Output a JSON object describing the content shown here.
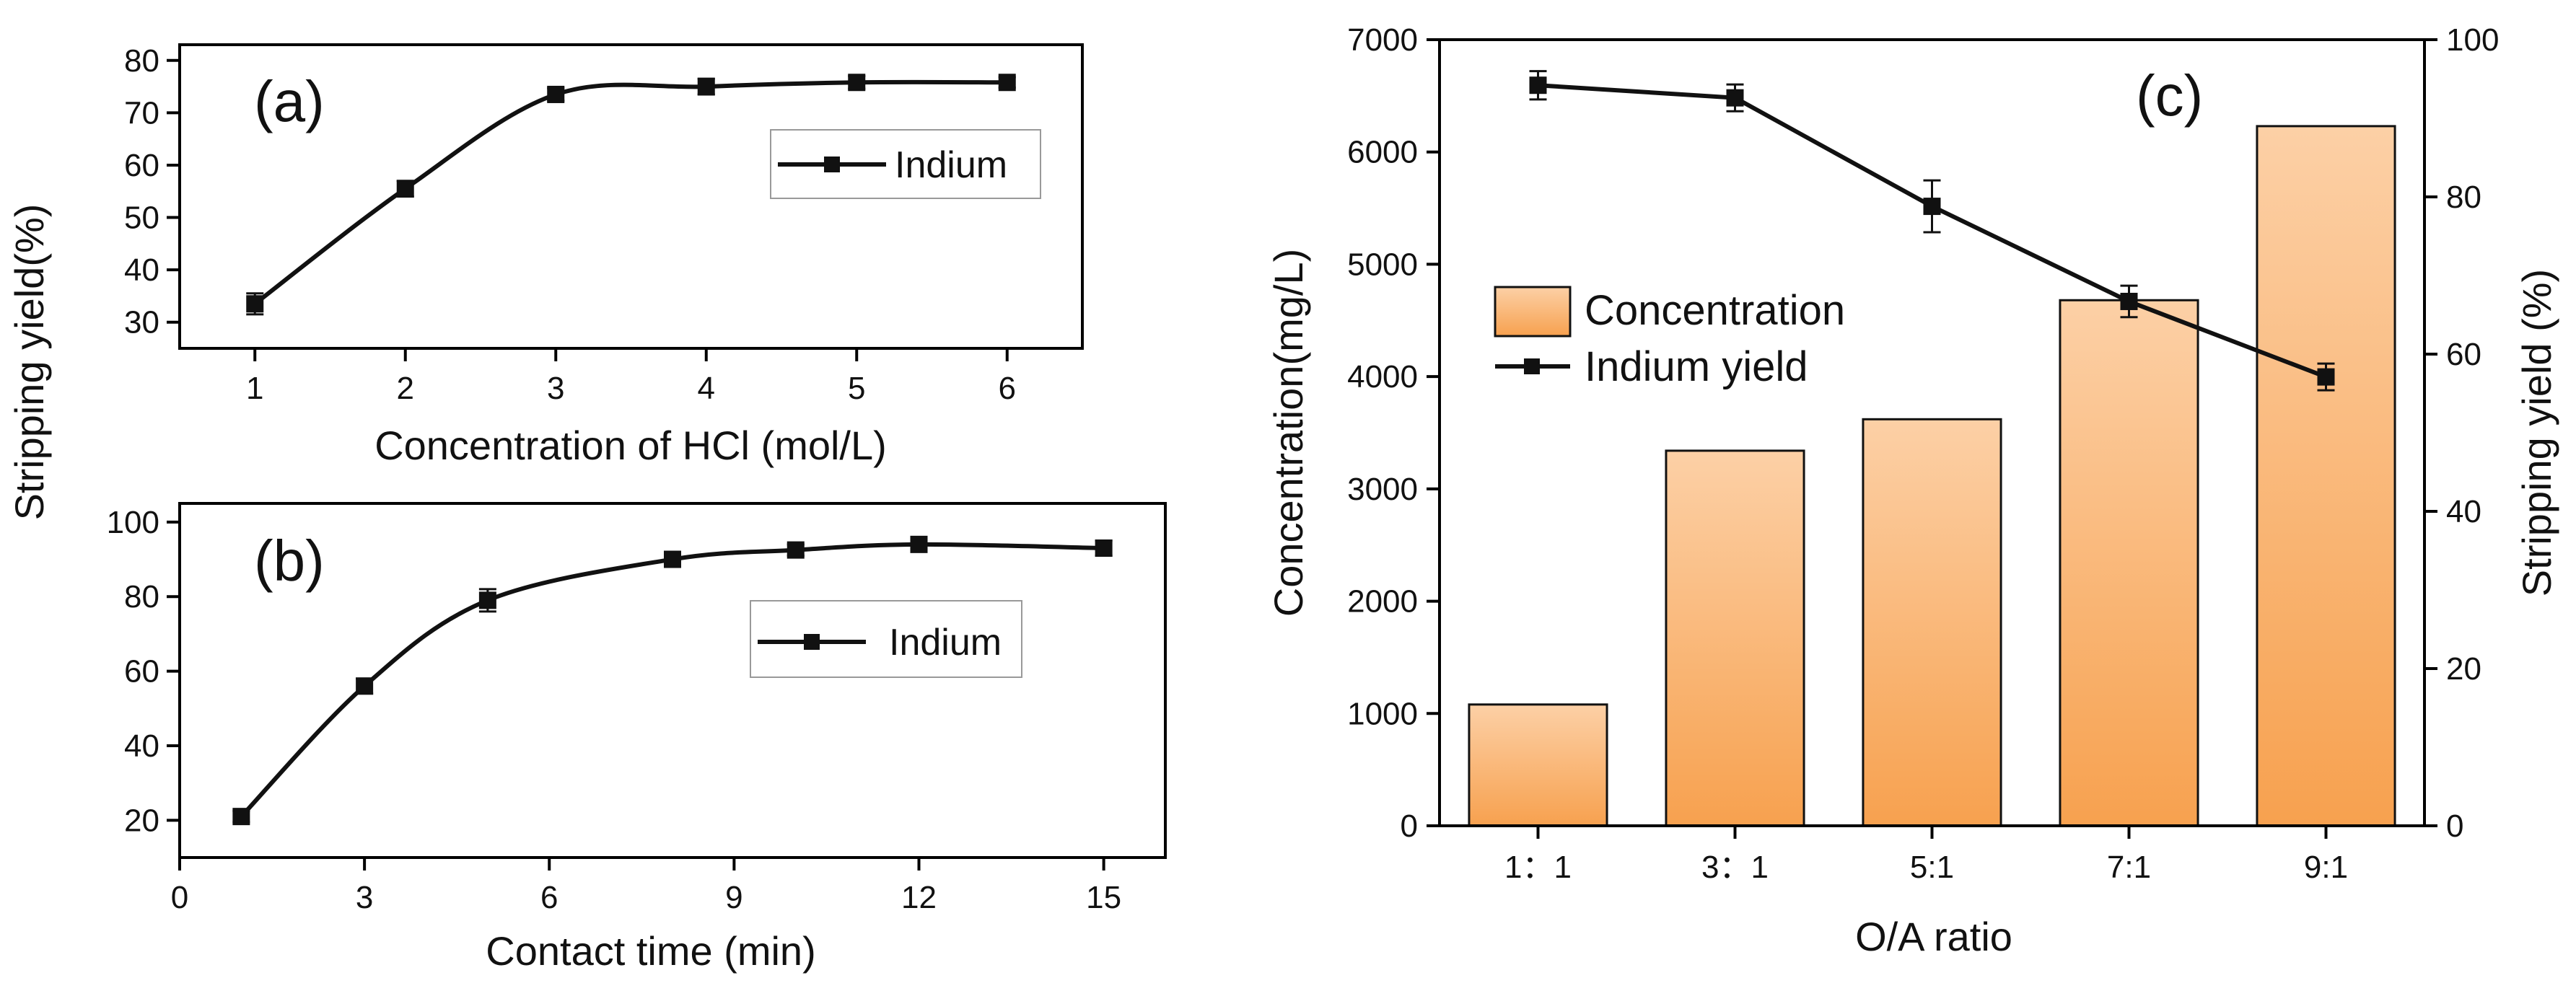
{
  "shared": {
    "ylabel_ab": "Stripping yield(%)"
  },
  "chart_data": [
    {
      "id": "a",
      "type": "line",
      "panel_label": "(a)",
      "xlabel": "Concentration of HCl (mol/L)",
      "ylabel": "Stripping yield(%)",
      "xlim": [
        0.5,
        6.5
      ],
      "ylim": [
        25,
        83
      ],
      "xticks": [
        1,
        2,
        3,
        4,
        5,
        6
      ],
      "yticks": [
        30,
        40,
        50,
        60,
        70,
        80
      ],
      "series": [
        {
          "name": "Indium",
          "x": [
            1,
            2,
            3,
            4,
            5,
            6
          ],
          "y": [
            33.5,
            55.5,
            73.5,
            75.0,
            75.8,
            75.8
          ],
          "err": [
            2.0,
            1.5,
            1.2,
            1.5,
            1.2,
            1.0
          ]
        }
      ],
      "legend": {
        "position": "right",
        "labels": [
          "Indium"
        ]
      }
    },
    {
      "id": "b",
      "type": "line",
      "panel_label": "(b)",
      "xlabel": "Contact time (min)",
      "ylabel": "Stripping yield(%)",
      "xlim": [
        0,
        16
      ],
      "ylim": [
        10,
        105
      ],
      "xticks": [
        0,
        3,
        6,
        9,
        12,
        15
      ],
      "yticks": [
        20,
        40,
        60,
        80,
        100
      ],
      "series": [
        {
          "name": "Indium",
          "x": [
            1,
            3,
            5,
            8,
            10,
            12,
            15
          ],
          "y": [
            21,
            56,
            79,
            90,
            92.5,
            94,
            93
          ],
          "err": [
            1.5,
            2.0,
            3.0,
            1.5,
            1.5,
            1.5,
            2.0
          ]
        }
      ],
      "legend": {
        "position": "right",
        "labels": [
          "Indium"
        ]
      }
    },
    {
      "id": "c",
      "type": "bar",
      "panel_label": "(c)",
      "xlabel": "O/A ratio",
      "ylabel": "Concentration(mg/L)",
      "y2label": "Stripping yield (%)",
      "categories": [
        "1：1",
        "3：1",
        "5:1",
        "7:1",
        "9:1"
      ],
      "ylim": [
        0,
        7000
      ],
      "yticks": [
        0,
        1000,
        2000,
        3000,
        4000,
        5000,
        6000,
        7000
      ],
      "y2lim": [
        0,
        100
      ],
      "y2ticks": [
        0,
        20,
        40,
        60,
        80,
        100
      ],
      "series": [
        {
          "name": "Concentration",
          "type": "bar",
          "axis": "left",
          "values": [
            1080,
            3340,
            3620,
            4680,
            6230
          ]
        },
        {
          "name": "Indium yield",
          "type": "line",
          "axis": "right",
          "values": [
            94.2,
            92.6,
            78.8,
            66.7,
            57.1
          ],
          "err": [
            1.8,
            1.7,
            3.3,
            2.0,
            1.7
          ]
        }
      ],
      "legend": {
        "position": "center-left",
        "labels": [
          "Concentration",
          "Indium yield"
        ]
      },
      "colors": {
        "bar_top": "#fcd0a6",
        "bar_bottom": "#f7a14f",
        "line": "#111111"
      }
    }
  ]
}
